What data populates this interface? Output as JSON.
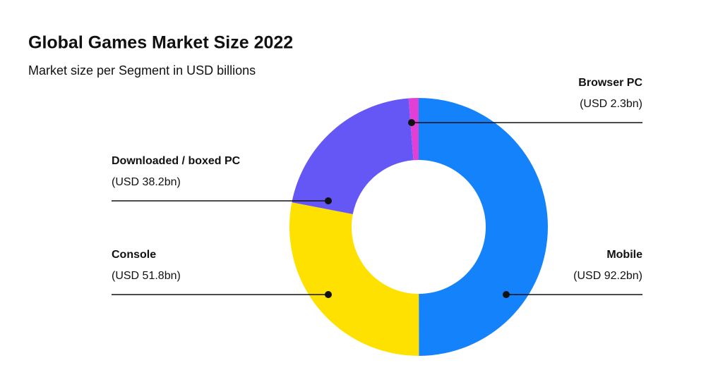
{
  "chart_data": {
    "type": "donut",
    "title": "Global Games Market Size 2022",
    "subtitle": "Market size per Segment in USD billions",
    "categories": [
      "Mobile",
      "Console",
      "Downloaded / boxed PC",
      "Browser PC"
    ],
    "values": [
      92.2,
      51.8,
      38.2,
      2.3
    ],
    "value_labels": [
      "(USD 92.2bn)",
      "(USD 51.8bn)",
      "(USD 38.2bn)",
      "(USD 2.3bn)"
    ],
    "colors": [
      "#1482fa",
      "#ffe100",
      "#6557f5",
      "#e040d6"
    ]
  }
}
